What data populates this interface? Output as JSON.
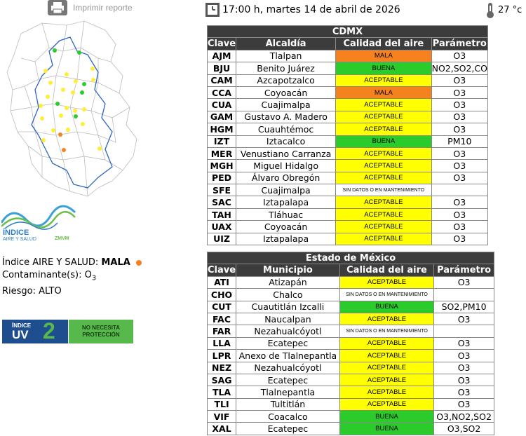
{
  "print": {
    "label": "Imprimir reporte"
  },
  "header": {
    "datetime": "17:00 h, martes 14 de abril de 2026",
    "temperature": "27 °c"
  },
  "logo": {
    "title": "ÍNDICE",
    "subtitle": "AIRE Y SALUD",
    "zone": "ZMVM"
  },
  "info": {
    "index_label": "Índice AIRE Y SALUD:",
    "index_value": "MALA",
    "pollutant_label": "Contaminante(s):",
    "pollutant_value": "O",
    "pollutant_sub": "3",
    "risk_label": "Riesgo:",
    "risk_value": "ALTO"
  },
  "uv": {
    "label_top": "ÍNDICE",
    "label_bottom": "UV",
    "value": "2",
    "advice": "NO NECESITA PROTECCIÓN"
  },
  "colors": {
    "mala": "#f5821f",
    "buena": "#2ccb2c",
    "aceptable": "#ffff00",
    "header": "#3c3c3c",
    "uv_blue": "#1f4e8f",
    "uv_green": "#57b94c"
  },
  "cdmx": {
    "title": "CDMX",
    "headers": [
      "Clave",
      "Alcaldía",
      "Calidad del aire",
      "Parámetro"
    ],
    "rows": [
      {
        "clave": "AJM",
        "name": "Tlalpan",
        "quality": "MALA",
        "param": "O3"
      },
      {
        "clave": "BJU",
        "name": "Benito Juárez",
        "quality": "BUENA",
        "param": "NO2,SO2,CO"
      },
      {
        "clave": "CAM",
        "name": "Azcapotzalco",
        "quality": "ACEPTABLE",
        "param": "O3"
      },
      {
        "clave": "CCA",
        "name": "Coyoacán",
        "quality": "MALA",
        "param": "O3"
      },
      {
        "clave": "CUA",
        "name": "Cuajimalpa",
        "quality": "ACEPTABLE",
        "param": "O3"
      },
      {
        "clave": "GAM",
        "name": "Gustavo A. Madero",
        "quality": "ACEPTABLE",
        "param": "O3"
      },
      {
        "clave": "HGM",
        "name": "Cuauhtémoc",
        "quality": "ACEPTABLE",
        "param": "O3"
      },
      {
        "clave": "IZT",
        "name": "Iztacalco",
        "quality": "BUENA",
        "param": "PM10"
      },
      {
        "clave": "MER",
        "name": "Venustiano Carranza",
        "quality": "ACEPTABLE",
        "param": "O3"
      },
      {
        "clave": "MGH",
        "name": "Miguel Hidalgo",
        "quality": "ACEPTABLE",
        "param": "O3"
      },
      {
        "clave": "PED",
        "name": "Álvaro Obregón",
        "quality": "ACEPTABLE",
        "param": "O3"
      },
      {
        "clave": "SFE",
        "name": "Cuajimalpa",
        "quality": "SIN DATOS O EN MANTENIMIENTO",
        "param": ""
      },
      {
        "clave": "SAC",
        "name": "Iztapalapa",
        "quality": "ACEPTABLE",
        "param": "O3"
      },
      {
        "clave": "TAH",
        "name": "Tláhuac",
        "quality": "ACEPTABLE",
        "param": "O3"
      },
      {
        "clave": "UAX",
        "name": "Coyoacán",
        "quality": "ACEPTABLE",
        "param": "O3"
      },
      {
        "clave": "UIZ",
        "name": "Iztapalapa",
        "quality": "ACEPTABLE",
        "param": "O3"
      }
    ]
  },
  "edomex": {
    "title": "Estado de México",
    "headers": [
      "Clave",
      "Municipio",
      "Calidad del aire",
      "Parámetro"
    ],
    "rows": [
      {
        "clave": "ATI",
        "name": "Atizapán",
        "quality": "ACEPTABLE",
        "param": "O3"
      },
      {
        "clave": "CHO",
        "name": "Chalco",
        "quality": "SIN DATOS O EN MANTENIMIENTO",
        "param": ""
      },
      {
        "clave": "CUT",
        "name": "Cuautitlán Izcalli",
        "quality": "BUENA",
        "param": "SO2,PM10"
      },
      {
        "clave": "FAC",
        "name": "Naucalpan",
        "quality": "ACEPTABLE",
        "param": "O3"
      },
      {
        "clave": "FAR",
        "name": "Nezahualcóyotl",
        "quality": "SIN DATOS O EN MANTENIMIENTO",
        "param": ""
      },
      {
        "clave": "LLA",
        "name": "Ecatepec",
        "quality": "ACEPTABLE",
        "param": "O3"
      },
      {
        "clave": "LPR",
        "name": "Anexo de Tlalnepantla",
        "quality": "ACEPTABLE",
        "param": "O3"
      },
      {
        "clave": "NEZ",
        "name": "Nezahualcóyotl",
        "quality": "ACEPTABLE",
        "param": "O3"
      },
      {
        "clave": "SAG",
        "name": "Ecatepec",
        "quality": "ACEPTABLE",
        "param": "O3"
      },
      {
        "clave": "TLA",
        "name": "Tlalnepantla",
        "quality": "ACEPTABLE",
        "param": "O3"
      },
      {
        "clave": "TLI",
        "name": "Tultitlán",
        "quality": "ACEPTABLE",
        "param": "O3"
      },
      {
        "clave": "VIF",
        "name": "Coacalco",
        "quality": "BUENA",
        "param": "O3,NO2,SO2"
      },
      {
        "clave": "XAL",
        "name": "Ecatepec",
        "quality": "BUENA",
        "param": "O3,SO2"
      }
    ]
  }
}
